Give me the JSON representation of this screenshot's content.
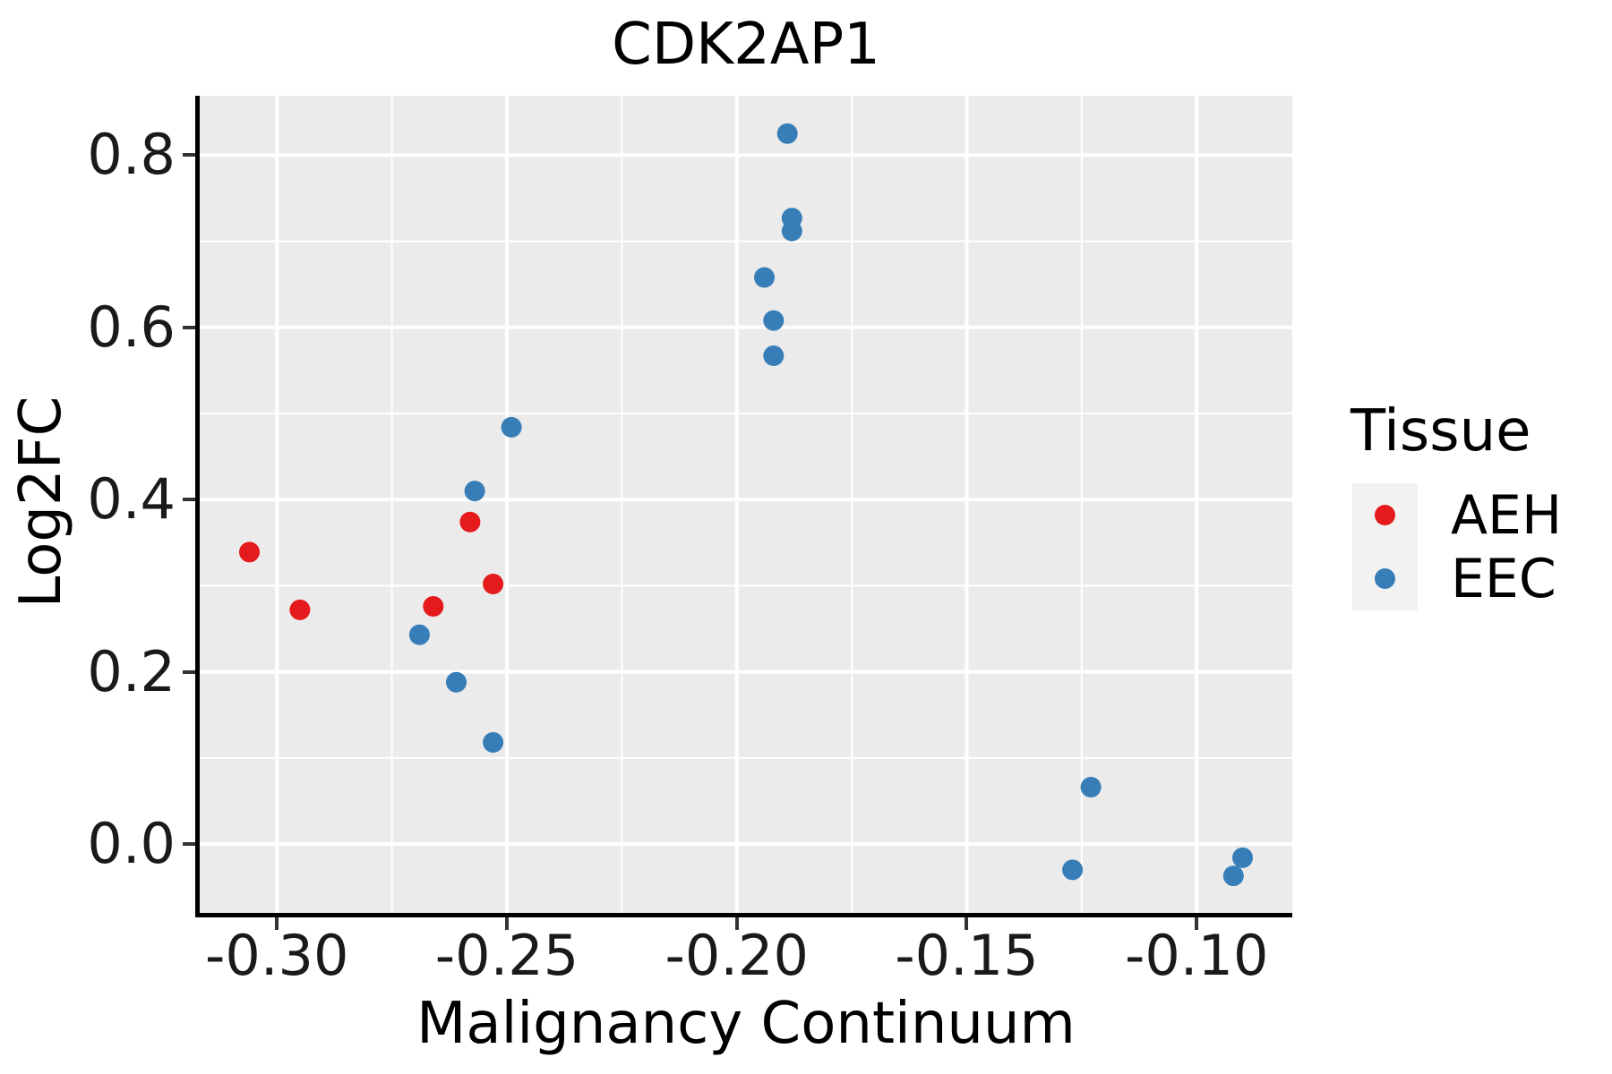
{
  "title": "CDK2AP1",
  "axis_titles": {
    "x": "Malignancy Continuum",
    "y": "Log2FC"
  },
  "legend": {
    "title": "Tissue",
    "items": [
      {
        "label": "AEH",
        "color": "#E41A1C"
      },
      {
        "label": "EEC",
        "color": "#377EB8"
      }
    ]
  },
  "colors": {
    "panel_background": "#EBEBEB",
    "gridline": "#FFFFFF",
    "axis_line": "#000000",
    "tick_mark": "#333333",
    "legend_key_background": "#F2F2F2",
    "aeh_red": "#E41A1C",
    "eec_blue": "#377EB8"
  },
  "chart_data": {
    "type": "scatter",
    "title": "CDK2AP1",
    "xlabel": "Malignancy Continuum",
    "ylabel": "Log2FC",
    "xlim": [
      -0.3168,
      -0.0792
    ],
    "ylim": [
      -0.08,
      0.869
    ],
    "grid": "major-and-minor-white-on-gray",
    "legend_position": "right",
    "x_ticks": {
      "values": [
        -0.3,
        -0.25,
        -0.2,
        -0.15,
        -0.1
      ],
      "labels": [
        "-0.30",
        "-0.25",
        "-0.20",
        "-0.15",
        "-0.10"
      ]
    },
    "y_ticks": {
      "values": [
        0.0,
        0.2,
        0.4,
        0.6,
        0.8
      ],
      "labels": [
        "0.0",
        "0.2",
        "0.4",
        "0.6",
        "0.8"
      ]
    },
    "series": [
      {
        "name": "AEH",
        "color": "#E41A1C",
        "points": [
          [
            -0.306,
            0.339
          ],
          [
            -0.295,
            0.272
          ],
          [
            -0.266,
            0.276
          ],
          [
            -0.258,
            0.374
          ],
          [
            -0.253,
            0.302
          ]
        ]
      },
      {
        "name": "EEC",
        "color": "#377EB8",
        "points": [
          [
            -0.269,
            0.243
          ],
          [
            -0.261,
            0.188
          ],
          [
            -0.257,
            0.41
          ],
          [
            -0.253,
            0.118
          ],
          [
            -0.249,
            0.484
          ],
          [
            -0.194,
            0.658
          ],
          [
            -0.192,
            0.608
          ],
          [
            -0.192,
            0.567
          ],
          [
            -0.189,
            0.825
          ],
          [
            -0.188,
            0.727
          ],
          [
            -0.188,
            0.712
          ],
          [
            -0.127,
            -0.03
          ],
          [
            -0.123,
            0.066
          ],
          [
            -0.092,
            -0.037
          ],
          [
            -0.09,
            -0.016
          ]
        ]
      }
    ]
  }
}
